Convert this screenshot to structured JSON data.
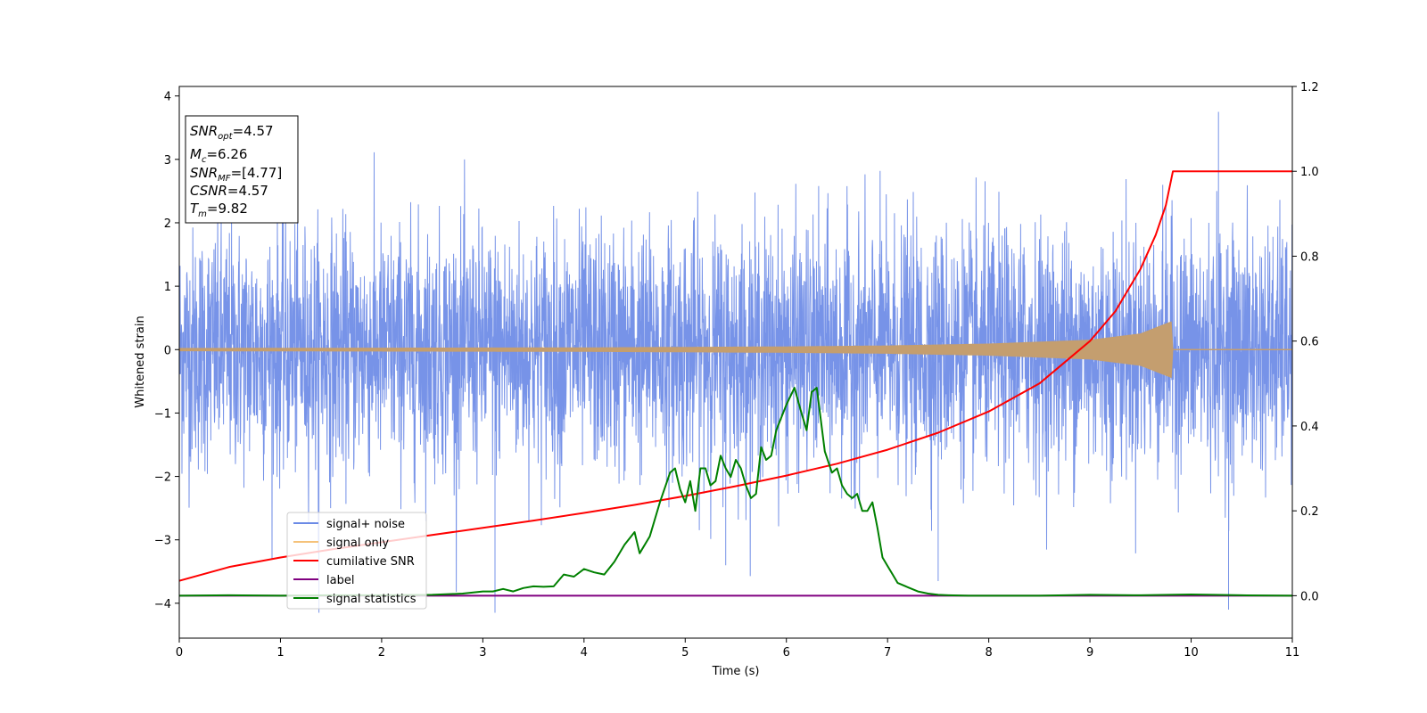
{
  "chart_data": {
    "type": "line",
    "xlabel": "Time (s)",
    "ylabel": "Whitened strain",
    "xlim": [
      0,
      11
    ],
    "ylim_left": [
      -4.55,
      4.15
    ],
    "ylim_right": [
      -0.1,
      1.2
    ],
    "x_ticks": [
      "0",
      "1",
      "2",
      "3",
      "4",
      "5",
      "6",
      "7",
      "8",
      "9",
      "10",
      "11"
    ],
    "y_ticks_left": [
      "−4",
      "−3",
      "−2",
      "−1",
      "0",
      "1",
      "2",
      "3",
      "4"
    ],
    "y_ticks_right": [
      "0.0",
      "0.2",
      "0.4",
      "0.6",
      "0.8",
      "1.0",
      "1.2"
    ],
    "colors": {
      "signal_noise": "#6b8ae6",
      "signal_only": "#f5c27a",
      "signal_only_dense": "#c49e6f",
      "cumulative_snr": "#ff0000",
      "label": "#800080",
      "signal_statistics": "#008000"
    },
    "legend": {
      "placement": "lower-left",
      "entries": [
        {
          "key": "signal_noise",
          "label": "signal+ noise"
        },
        {
          "key": "signal_only",
          "label": "signal only"
        },
        {
          "key": "cumulative_snr",
          "label": "cumilative SNR"
        },
        {
          "key": "label",
          "label": "label"
        },
        {
          "key": "signal_statistics",
          "label": "signal statistics"
        }
      ]
    },
    "info_box": {
      "snr_opt_main": "SNR",
      "snr_opt_sub": "opt",
      "snr_opt_val": "=4.57",
      "mc_main": "M",
      "mc_sub": "c",
      "mc_val": "=6.26",
      "snr_mf_main": "SNR",
      "snr_mf_sub": "MF",
      "snr_mf_val": "=[4.77]",
      "csnr_main": "CSNR",
      "csnr_val": "=4.57",
      "tm_main": "T",
      "tm_sub": "m",
      "tm_val": "=9.82"
    },
    "series": [
      {
        "name": "signal+ noise",
        "axis": "left",
        "description_stats": {
          "mean": 0,
          "typical_range": [
            -2.2,
            2.2
          ],
          "peak_max": 3.75,
          "peak_min": -4.15
        }
      },
      {
        "name": "signal only",
        "axis": "left",
        "envelope_x": [
          0,
          2,
          4,
          6,
          7,
          8,
          9,
          9.5,
          9.82,
          9.821
        ],
        "envelope_amp": [
          0.02,
          0.025,
          0.03,
          0.045,
          0.06,
          0.09,
          0.15,
          0.25,
          0.45,
          0
        ]
      },
      {
        "name": "cumilative SNR",
        "axis": "right",
        "x": [
          0,
          0.5,
          1,
          1.5,
          2,
          2.5,
          3,
          3.5,
          4,
          4.5,
          5,
          5.5,
          6,
          6.5,
          7,
          7.5,
          8,
          8.5,
          9,
          9.25,
          9.5,
          9.65,
          9.75,
          9.82,
          11
        ],
        "y": [
          0.035,
          0.068,
          0.09,
          0.109,
          0.126,
          0.143,
          0.16,
          0.177,
          0.195,
          0.214,
          0.235,
          0.258,
          0.283,
          0.311,
          0.344,
          0.384,
          0.434,
          0.5,
          0.6,
          0.67,
          0.77,
          0.85,
          0.92,
          1.0,
          1.0
        ]
      },
      {
        "name": "label",
        "axis": "right",
        "x": [
          0,
          11
        ],
        "y": [
          0,
          0
        ]
      },
      {
        "name": "signal statistics",
        "axis": "right",
        "x": [
          0,
          0.5,
          1,
          1.5,
          2,
          2.5,
          2.8,
          3.0,
          3.1,
          3.2,
          3.3,
          3.4,
          3.5,
          3.6,
          3.7,
          3.8,
          3.9,
          4.0,
          4.1,
          4.2,
          4.3,
          4.4,
          4.5,
          4.55,
          4.65,
          4.75,
          4.85,
          4.9,
          4.95,
          5.0,
          5.05,
          5.1,
          5.15,
          5.2,
          5.25,
          5.3,
          5.35,
          5.4,
          5.45,
          5.5,
          5.55,
          5.6,
          5.65,
          5.7,
          5.75,
          5.8,
          5.85,
          5.9,
          6.0,
          6.08,
          6.15,
          6.2,
          6.25,
          6.3,
          6.38,
          6.45,
          6.5,
          6.55,
          6.6,
          6.65,
          6.7,
          6.75,
          6.8,
          6.85,
          6.9,
          6.95,
          7.0,
          7.05,
          7.1,
          7.2,
          7.3,
          7.4,
          7.5,
          7.6,
          7.8,
          8.0,
          8.5,
          9.0,
          9.5,
          10.0,
          10.5,
          11.0
        ],
        "y": [
          0.0,
          0.001,
          0.0,
          0.001,
          0.001,
          0.002,
          0.005,
          0.01,
          0.01,
          0.016,
          0.01,
          0.018,
          0.022,
          0.021,
          0.022,
          0.05,
          0.045,
          0.063,
          0.055,
          0.05,
          0.08,
          0.12,
          0.15,
          0.1,
          0.14,
          0.22,
          0.29,
          0.3,
          0.25,
          0.22,
          0.27,
          0.2,
          0.3,
          0.3,
          0.26,
          0.27,
          0.33,
          0.3,
          0.28,
          0.32,
          0.3,
          0.26,
          0.23,
          0.24,
          0.35,
          0.32,
          0.33,
          0.39,
          0.45,
          0.49,
          0.43,
          0.39,
          0.48,
          0.49,
          0.34,
          0.29,
          0.3,
          0.26,
          0.24,
          0.23,
          0.24,
          0.2,
          0.2,
          0.22,
          0.16,
          0.09,
          0.07,
          0.05,
          0.03,
          0.02,
          0.01,
          0.005,
          0.002,
          0.001,
          0.0,
          0.0,
          0.0,
          0.002,
          0.001,
          0.003,
          0.001,
          0.0
        ]
      }
    ]
  }
}
